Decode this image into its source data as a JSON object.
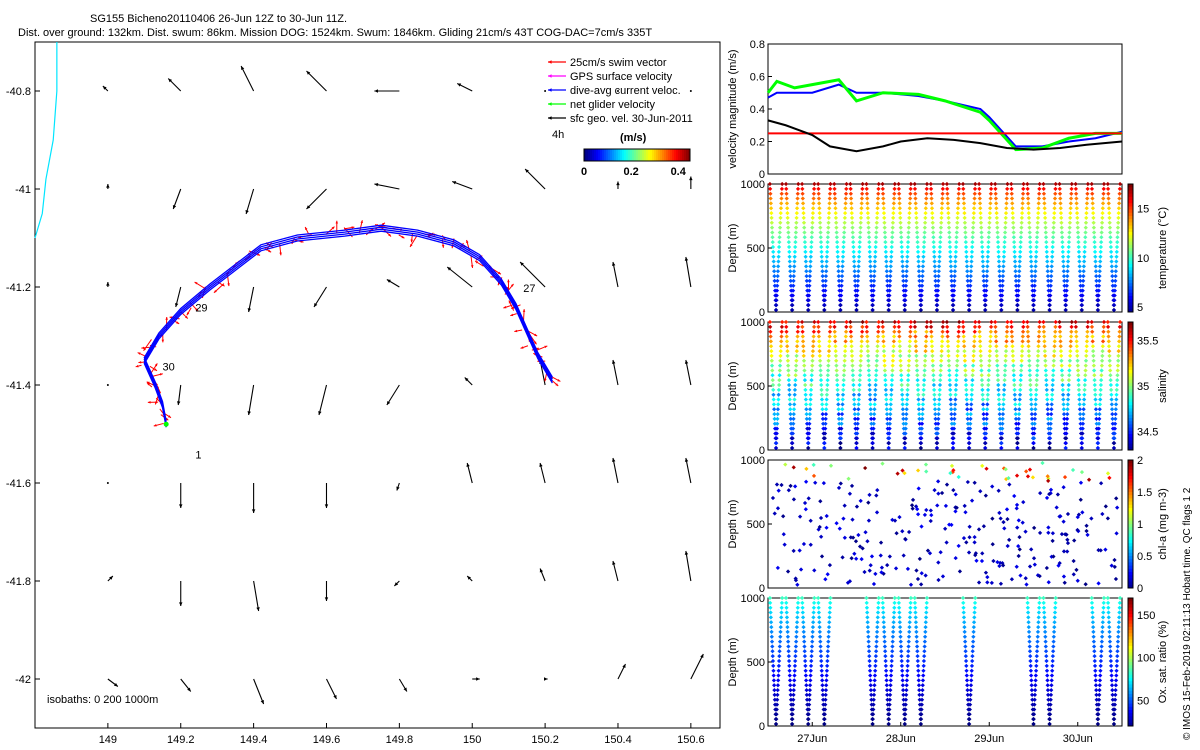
{
  "header": {
    "line1": "SG155 Bicheno20110406 26-Jun 12Z to 30-Jun 11Z.",
    "line2": "Dist. over ground: 132km. Dist. swum: 86km. Mission DOG: 1524km. Swum: 1846km. Gliding 21cm/s 43T COG-DAC=7cm/s 335T"
  },
  "credit": "© IMOS 15-Feb-2019 02:11:13 Hobart time. QC flags 1 2",
  "colors": {
    "swim_vector": "#ff0000",
    "gps_surface": "#ff00ff",
    "dive_avg": "#0000ff",
    "net_velocity": "#00ff00",
    "geo_vel": "#000000",
    "isobath": "#00e5ff"
  },
  "chart_data": [
    {
      "type": "scatter",
      "name": "track-map",
      "xlim": [
        148.8,
        150.68
      ],
      "ylim": [
        -42.1,
        -40.7
      ],
      "x_ticks": [
        149,
        149.2,
        149.4,
        149.6,
        149.8,
        150,
        150.2,
        150.4,
        150.6
      ],
      "x_tick_labels": [
        "149",
        "149.2",
        "149.4",
        "149.6",
        "149.8",
        "150",
        "150.2",
        "150.4",
        "150.6"
      ],
      "y_ticks": [
        -40.8,
        -41,
        -41.2,
        -41.4,
        -41.6,
        -41.8,
        -42
      ],
      "y_tick_labels": [
        "-40.8",
        "-41",
        "-41.2",
        "-41.4",
        "-41.6",
        "-41.8",
        "-42"
      ],
      "legend": {
        "placement": "top-right",
        "entries": [
          {
            "label": "25cm/s swim vector",
            "color": "#ff0000"
          },
          {
            "label": "GPS surface velocity",
            "color": "#ff00ff"
          },
          {
            "label": "dive-avg current veloc.",
            "color": "#0000ff"
          },
          {
            "label": "net glider velocity",
            "color": "#00ff00"
          },
          {
            "label": "sfc geo. vel. 30-Jun-2011",
            "color": "#000000"
          }
        ],
        "tag": "4h",
        "colorbar_unit": "(m/s)",
        "colorbar_ticks": [
          "0",
          "0.2",
          "0.4"
        ],
        "colorbar_range": [
          0,
          0.45
        ]
      },
      "track": [
        [
          150.22,
          -41.39
        ],
        [
          150.18,
          -41.34
        ],
        [
          150.15,
          -41.29
        ],
        [
          150.12,
          -41.24
        ],
        [
          150.08,
          -41.19
        ],
        [
          150.02,
          -41.14
        ],
        [
          149.95,
          -41.11
        ],
        [
          149.85,
          -41.09
        ],
        [
          149.75,
          -41.08
        ],
        [
          149.65,
          -41.09
        ],
        [
          149.52,
          -41.1
        ],
        [
          149.42,
          -41.12
        ],
        [
          149.35,
          -41.16
        ],
        [
          149.28,
          -41.2
        ],
        [
          149.2,
          -41.25
        ],
        [
          149.14,
          -41.3
        ],
        [
          149.1,
          -41.35
        ],
        [
          149.13,
          -41.4
        ],
        [
          149.15,
          -41.44
        ],
        [
          149.16,
          -41.48
        ]
      ],
      "day_labels": [
        {
          "text": "27",
          "x": 150.14,
          "y": -41.21
        },
        {
          "text": "29",
          "x": 149.24,
          "y": -41.25
        },
        {
          "text": "30",
          "x": 149.15,
          "y": -41.37
        },
        {
          "text": "1",
          "x": 149.24,
          "y": -41.55
        }
      ],
      "isobath": [
        [
          148.86,
          -40.7
        ],
        [
          148.86,
          -40.8
        ],
        [
          148.85,
          -40.9
        ],
        [
          148.83,
          -40.98
        ],
        [
          148.82,
          -41.05
        ],
        [
          148.8,
          -41.1
        ]
      ],
      "isobath_label": "isobaths: 0   200   1000m",
      "geo_vectors": {
        "lons": [
          149,
          149.2,
          149.4,
          149.6,
          149.8,
          150,
          150.2,
          150.4,
          150.6
        ],
        "lats": [
          -40.8,
          -41,
          -41.2,
          -41.4,
          -41.6,
          -41.8,
          -42
        ],
        "u": [
          [
            -0.02,
            -0.05,
            -0.05,
            -0.08,
            -0.1,
            -0.06,
            0.0,
            0.0,
            0.0
          ],
          [
            0.0,
            -0.03,
            -0.03,
            -0.08,
            -0.1,
            -0.08,
            -0.08,
            0.0,
            0.0
          ],
          [
            0.0,
            -0.02,
            -0.02,
            -0.05,
            -0.05,
            -0.1,
            -0.1,
            -0.02,
            -0.02
          ],
          [
            0.0,
            -0.01,
            -0.02,
            -0.03,
            -0.05,
            -0.03,
            -0.02,
            -0.02,
            -0.02
          ],
          [
            0.0,
            0.0,
            0.0,
            0.0,
            -0.01,
            -0.02,
            -0.02,
            -0.02,
            -0.02
          ],
          [
            0.02,
            0.0,
            0.02,
            0.0,
            -0.02,
            -0.02,
            -0.02,
            -0.02,
            -0.02
          ],
          [
            0.04,
            0.04,
            0.04,
            0.04,
            0.03,
            0.03,
            0.01,
            0.03,
            0.05
          ]
        ],
        "v": [
          [
            0.02,
            0.05,
            0.1,
            0.08,
            0.0,
            0.03,
            0.0,
            0.0,
            0.0
          ],
          [
            0.02,
            -0.08,
            -0.1,
            -0.08,
            0.02,
            0.03,
            0.08,
            0.03,
            0.05
          ],
          [
            0.02,
            -0.08,
            -0.1,
            -0.08,
            0.03,
            0.08,
            0.1,
            0.1,
            0.12
          ],
          [
            0.0,
            -0.08,
            -0.12,
            -0.12,
            -0.08,
            0.03,
            0.1,
            0.1,
            0.1
          ],
          [
            0.0,
            -0.1,
            -0.12,
            -0.1,
            -0.03,
            0.08,
            0.08,
            0.1,
            0.1
          ],
          [
            0.02,
            -0.1,
            -0.12,
            -0.08,
            -0.02,
            0.02,
            0.05,
            0.08,
            0.12
          ],
          [
            -0.03,
            -0.05,
            -0.1,
            -0.08,
            -0.05,
            0.0,
            0.0,
            0.06,
            0.1
          ]
        ]
      }
    },
    {
      "type": "line",
      "name": "velocity-panel",
      "ylabel": "velocity magnitude (m/s)",
      "ylim": [
        0,
        0.8
      ],
      "y_ticks": [
        0,
        0.2,
        0.4,
        0.6,
        0.8
      ],
      "y_tick_labels": [
        "0",
        "0.2",
        "0.4",
        "0.6",
        "0.8"
      ],
      "xlim": [
        26.5,
        30.5
      ],
      "series": [
        {
          "color": "#0000ff",
          "x": [
            26.5,
            26.6,
            26.8,
            27.0,
            27.3,
            27.5,
            27.8,
            28.2,
            28.5,
            28.9,
            29.0,
            29.3,
            29.6,
            29.9,
            30.2,
            30.5
          ],
          "y": [
            0.47,
            0.5,
            0.5,
            0.5,
            0.55,
            0.5,
            0.5,
            0.48,
            0.45,
            0.4,
            0.35,
            0.17,
            0.17,
            0.2,
            0.22,
            0.26
          ]
        },
        {
          "color": "#00ff00",
          "x": [
            26.5,
            26.6,
            26.8,
            27.0,
            27.3,
            27.5,
            27.8,
            28.2,
            28.5,
            28.9,
            29.0,
            29.3,
            29.6,
            29.9,
            30.2,
            30.5
          ],
          "y": [
            0.5,
            0.57,
            0.53,
            0.55,
            0.58,
            0.45,
            0.5,
            0.49,
            0.45,
            0.38,
            0.33,
            0.15,
            0.16,
            0.22,
            0.25,
            0.25
          ]
        },
        {
          "color": "#ff0000",
          "x": [
            26.5,
            30.5
          ],
          "y": [
            0.25,
            0.25
          ]
        },
        {
          "color": "#000000",
          "x": [
            26.5,
            26.7,
            27.0,
            27.2,
            27.5,
            27.8,
            28.0,
            28.3,
            28.6,
            28.9,
            29.2,
            29.5,
            29.8,
            30.1,
            30.5
          ],
          "y": [
            0.33,
            0.3,
            0.24,
            0.17,
            0.14,
            0.17,
            0.2,
            0.22,
            0.21,
            0.19,
            0.16,
            0.15,
            0.16,
            0.18,
            0.2
          ]
        }
      ]
    },
    {
      "type": "scatter",
      "name": "temperature-panel",
      "ylabel": "Depth (m)",
      "ylim": [
        1000,
        0
      ],
      "y_ticks": [
        0,
        500,
        1000
      ],
      "y_tick_labels": [
        "0",
        "500",
        "1000"
      ],
      "colorbar_label": "temperature (°C)",
      "colorbar_range": [
        4.5,
        17.5
      ],
      "colorbar_ticks": [
        "5",
        "10",
        "15"
      ],
      "surface_value": 17,
      "bottom_value": 5,
      "cycles": 22,
      "missing_cycles": []
    },
    {
      "type": "scatter",
      "name": "salinity-panel",
      "ylabel": "Depth (m)",
      "ylim": [
        1000,
        0
      ],
      "y_ticks": [
        0,
        500,
        1000
      ],
      "y_tick_labels": [
        "0",
        "500",
        "1000"
      ],
      "colorbar_label": "salinity",
      "colorbar_range": [
        34.3,
        35.7
      ],
      "colorbar_ticks": [
        "34.5",
        "35",
        "35.5"
      ],
      "surface_value": 35.6,
      "bottom_value": 34.4,
      "cycles": 22,
      "missing_cycles": []
    },
    {
      "type": "scatter",
      "name": "chl-panel",
      "ylabel": "Depth (m)",
      "ylim": [
        1000,
        0
      ],
      "y_ticks": [
        0,
        500,
        1000
      ],
      "y_tick_labels": [
        "0",
        "500",
        "1000"
      ],
      "colorbar_label": "chl-a (mg m-3)",
      "colorbar_range": [
        0,
        2
      ],
      "colorbar_ticks": [
        "0",
        "0.5",
        "1",
        "1.5",
        "2"
      ]
    },
    {
      "type": "scatter",
      "name": "oxygen-panel",
      "ylabel": "Depth (m)",
      "ylim": [
        1000,
        0
      ],
      "y_ticks": [
        0,
        500,
        1000
      ],
      "y_tick_labels": [
        "0",
        "500",
        "1000"
      ],
      "colorbar_label": "Ox. sat. ratio (%)",
      "colorbar_range": [
        20,
        170
      ],
      "colorbar_ticks": [
        "50",
        "100",
        "150"
      ],
      "surface_value": 85,
      "bottom_value": 20,
      "cycles": 22,
      "missing_cycles": [
        4,
        5,
        10,
        11,
        13,
        14,
        15,
        18,
        19
      ],
      "x_tick_labels": [
        "27Jun",
        "28Jun",
        "29Jun",
        "30Jun"
      ],
      "x_ticks": [
        27,
        28,
        29,
        30
      ],
      "xlim": [
        26.5,
        30.5
      ]
    }
  ]
}
